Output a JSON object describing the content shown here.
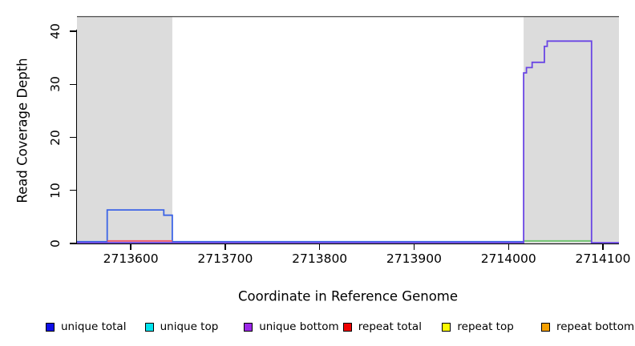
{
  "chart_data": {
    "type": "line",
    "title": "",
    "xlabel": "Coordinate in Reference Genome",
    "ylabel": "Read Coverage Depth",
    "xlim": [
      2713543,
      2714117
    ],
    "ylim": [
      0,
      42.87
    ],
    "x_ticks": [
      2713600,
      2713700,
      2713800,
      2713900,
      2714000,
      2714100
    ],
    "y_ticks": [
      0,
      10,
      20,
      30,
      40
    ],
    "grid": false,
    "legend_position": "bottom",
    "shaded_regions": [
      {
        "name": "repeat-region-left",
        "x1": 2713543,
        "x2": 2713644,
        "color": "#dcdcdc"
      },
      {
        "name": "repeat-region-right",
        "x1": 2714016,
        "x2": 2714117,
        "color": "#dcdcdc"
      }
    ],
    "top_border_color": "#5a5a5a",
    "series": [
      {
        "name": "unique total",
        "color": "#3c64e6",
        "points": [
          [
            2713543,
            0
          ],
          [
            2713575,
            0
          ],
          [
            2713575,
            6
          ],
          [
            2713635,
            6
          ],
          [
            2713635,
            5
          ],
          [
            2713644,
            5
          ],
          [
            2713644,
            0
          ],
          [
            2714016,
            0
          ]
        ]
      },
      {
        "name": "repeat total",
        "color": "#ee5868",
        "points": [
          [
            2713575,
            0
          ],
          [
            2713644,
            0
          ]
        ]
      },
      {
        "name": "green baseline segment",
        "color": "#6cc46c",
        "points": [
          [
            2714016,
            0
          ],
          [
            2714088,
            0
          ]
        ]
      },
      {
        "name": "unique bottom",
        "color": "#6a46e4",
        "points": [
          [
            2713543,
            0
          ],
          [
            2714016,
            0
          ],
          [
            2714016,
            32
          ],
          [
            2714019,
            32
          ],
          [
            2714019,
            33
          ],
          [
            2714025,
            33
          ],
          [
            2714025,
            34
          ],
          [
            2714038,
            34
          ],
          [
            2714038,
            37
          ],
          [
            2714041,
            37
          ],
          [
            2714041,
            38
          ],
          [
            2714088,
            38
          ],
          [
            2714088,
            0
          ],
          [
            2714117,
            0
          ]
        ]
      }
    ],
    "legend": [
      {
        "label": "unique total",
        "color": "#0f0fe8"
      },
      {
        "label": "unique top",
        "color": "#00e4ee"
      },
      {
        "label": "unique bottom",
        "color": "#9c28e8"
      },
      {
        "label": "repeat total",
        "color": "#f00000"
      },
      {
        "label": "repeat top",
        "color": "#fbfb00"
      },
      {
        "label": "repeat bottom",
        "color": "#f5a000"
      }
    ]
  }
}
